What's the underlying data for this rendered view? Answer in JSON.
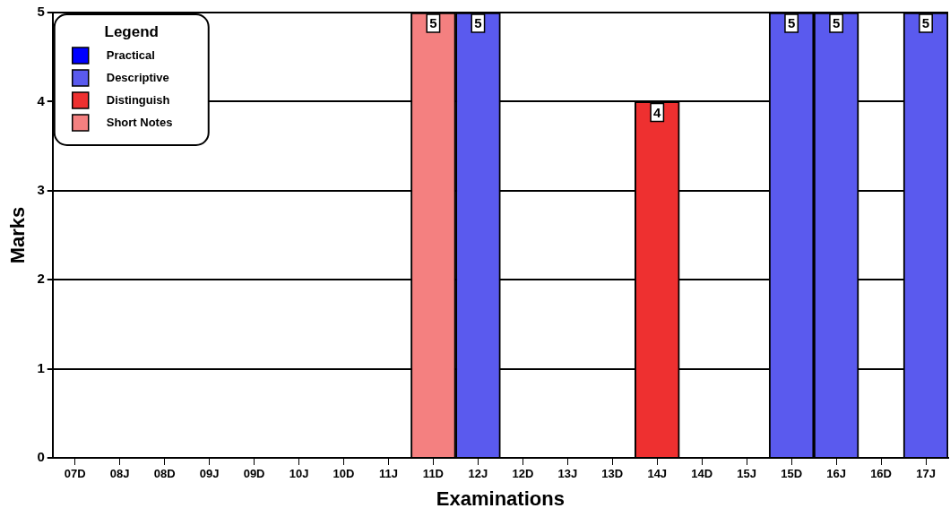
{
  "chart_data": {
    "type": "bar",
    "stacked": true,
    "xlabel": "Examinations",
    "ylabel": "Marks",
    "legend_title": "Legend",
    "legend": "top left",
    "categories": [
      "07D",
      "08J",
      "08D",
      "09J",
      "09D",
      "10J",
      "10D",
      "11J",
      "11D",
      "12J",
      "12D",
      "13J",
      "13D",
      "14J",
      "14D",
      "15J",
      "15D",
      "16J",
      "16D",
      "17J"
    ],
    "series": [
      {
        "name": "Practical",
        "color": "#0000ff",
        "values": [
          null,
          null,
          null,
          null,
          null,
          null,
          null,
          null,
          null,
          null,
          null,
          null,
          null,
          null,
          null,
          null,
          null,
          null,
          null,
          null
        ]
      },
      {
        "name": "Descriptive",
        "color": "#5a5aee",
        "values": [
          null,
          null,
          null,
          null,
          null,
          null,
          null,
          null,
          null,
          5,
          null,
          null,
          null,
          null,
          null,
          null,
          5,
          5,
          null,
          5
        ]
      },
      {
        "name": "Distinguish",
        "color": "#ee3030",
        "values": [
          null,
          null,
          null,
          null,
          null,
          null,
          null,
          null,
          null,
          null,
          null,
          null,
          null,
          4,
          null,
          null,
          null,
          null,
          null,
          null
        ]
      },
      {
        "name": "Short Notes",
        "color": "#f48080",
        "values": [
          null,
          null,
          null,
          null,
          null,
          null,
          null,
          null,
          5,
          null,
          null,
          null,
          null,
          null,
          null,
          null,
          null,
          null,
          null,
          null
        ]
      }
    ],
    "ylim": [
      0,
      5
    ],
    "yticks": [
      0,
      1,
      2,
      3,
      4,
      5
    ],
    "grid": "y",
    "data_labels": true
  }
}
